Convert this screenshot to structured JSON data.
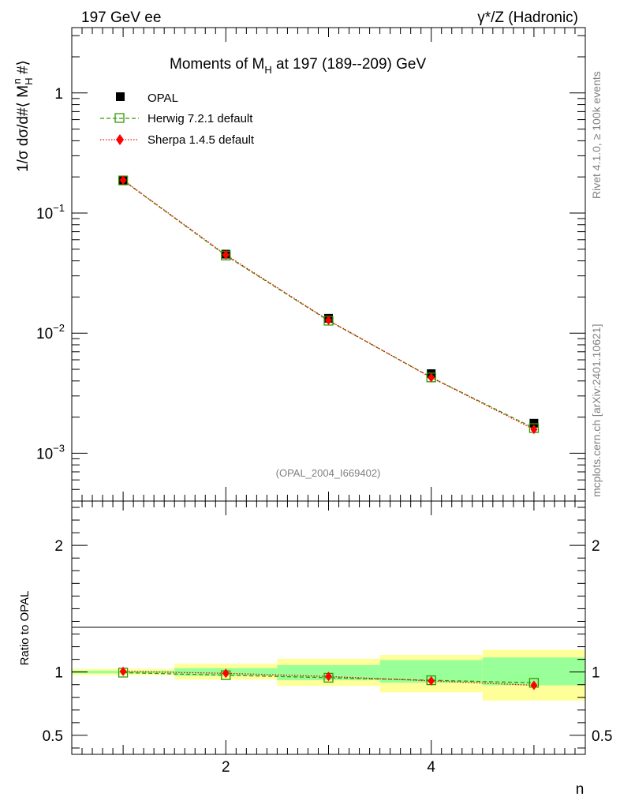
{
  "header": {
    "left": "197 GeV ee",
    "right": "γ*/Z (Hadronic)"
  },
  "side": {
    "rivet": "Rivet 4.1.0, ≥ 100k events",
    "mcplots": "mcplots.cern.ch [arXiv:2401.10621]"
  },
  "watermark": "(OPAL_2004_I669402)",
  "colors": {
    "opal": "#000000",
    "herwig": "#339900",
    "sherpa": "#ff0000",
    "band_inner": "#99ff99",
    "band_outer": "#ffff99"
  },
  "chart_data": [
    {
      "type": "scatter",
      "title": "Moments of M_H at 197 (189--209) GeV",
      "title_parts": {
        "pre": "Moments of M",
        "sub": "H",
        "post": " at 197 (189--209) GeV"
      },
      "ylabel": "1/σ  dσ/d#⟨ M_H^n #⟩",
      "ylabel_parts": {
        "pre": "1/σ  dσ/d#⟨ M",
        "sub": "H",
        "sup": "n",
        "post": " #⟩"
      },
      "yscale": "log",
      "ylim": [
        0.0004,
        3.5
      ],
      "xlim": [
        0.5,
        5.5
      ],
      "x": [
        1,
        2,
        3,
        4,
        5
      ],
      "yticks": [
        {
          "value": 1,
          "label": "1"
        },
        {
          "value": 0.1,
          "label": "10",
          "exp": "−1"
        },
        {
          "value": 0.01,
          "label": "10",
          "exp": "−2"
        },
        {
          "value": 0.001,
          "label": "10",
          "exp": "−3"
        }
      ],
      "legend_position": "top-left",
      "series": [
        {
          "name": "OPAL",
          "values": [
            0.188,
            0.0455,
            0.0133,
            0.0046,
            0.00178
          ]
        },
        {
          "name": "Herwig 7.2.1 default",
          "values": [
            0.187,
            0.0443,
            0.0127,
            0.00428,
            0.00162
          ]
        },
        {
          "name": "Sherpa 1.4.5 default",
          "values": [
            0.188,
            0.0449,
            0.0128,
            0.00427,
            0.00158
          ]
        }
      ]
    },
    {
      "type": "scatter",
      "ylabel": "Ratio to OPAL",
      "xlabel": "n",
      "ylim": [
        0.35,
        2.35
      ],
      "xlim": [
        0.5,
        5.5
      ],
      "x": [
        1,
        2,
        3,
        4,
        5
      ],
      "xticks": [
        {
          "value": 2,
          "label": "2"
        },
        {
          "value": 4,
          "label": "4"
        }
      ],
      "yticks": [
        {
          "value": 0.5,
          "label": "0.5"
        },
        {
          "value": 1,
          "label": "1"
        },
        {
          "value": 2,
          "label": "2"
        }
      ],
      "bands": {
        "inner": [
          [
            0.99,
            1.01
          ],
          [
            0.97,
            1.03
          ],
          [
            0.935,
            1.055
          ],
          [
            0.915,
            1.095
          ],
          [
            0.895,
            1.115
          ]
        ],
        "outer": [
          [
            0.975,
            1.025
          ],
          [
            0.94,
            1.065
          ],
          [
            0.89,
            1.105
          ],
          [
            0.84,
            1.135
          ],
          [
            0.775,
            1.175
          ]
        ]
      },
      "series": [
        {
          "name": "Herwig 7.2.1 default",
          "values": [
            0.995,
            0.975,
            0.955,
            0.935,
            0.915
          ]
        },
        {
          "name": "Sherpa 1.4.5 default",
          "values": [
            1.005,
            0.99,
            0.965,
            0.93,
            0.895
          ]
        }
      ]
    }
  ]
}
